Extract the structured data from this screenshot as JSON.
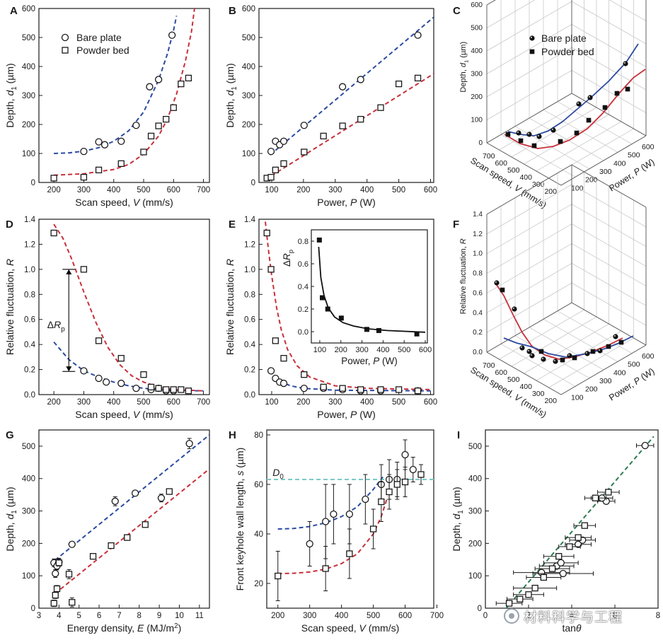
{
  "watermark": "材料科学与工程",
  "chart_data": [
    {
      "panel": "A",
      "type": "scatter",
      "xlabel": "Scan speed, V (mm/s)",
      "ylabel": "Depth, d1 (µm)",
      "xlim": [
        150,
        720
      ],
      "ylim": [
        0,
        600
      ],
      "xticks": [
        200,
        300,
        400,
        500,
        600,
        700
      ],
      "yticks": [
        0,
        100,
        200,
        300,
        400,
        500,
        600
      ],
      "legend": "top-left",
      "series": [
        {
          "name": "Bare plate",
          "marker": "circle",
          "x": [
            300,
            350,
            370,
            425,
            475,
            520,
            550,
            595
          ],
          "y": [
            107,
            140,
            130,
            142,
            197,
            330,
            355,
            508
          ]
        },
        {
          "name": "Powder bed",
          "marker": "square",
          "x": [
            200,
            300,
            350,
            425,
            500,
            525,
            550,
            575,
            600,
            625,
            650
          ],
          "y": [
            15,
            18,
            43,
            65,
            105,
            160,
            195,
            218,
            258,
            340,
            360
          ]
        }
      ],
      "fits": [
        {
          "color": "#2b4aa0",
          "x": [
            200,
            250,
            300,
            350,
            400,
            450,
            500,
            550,
            580,
            600,
            610
          ],
          "y": [
            100,
            102,
            108,
            120,
            142,
            178,
            243,
            353,
            445,
            525,
            575
          ]
        },
        {
          "color": "#c8303a",
          "x": [
            200,
            300,
            400,
            450,
            500,
            550,
            580,
            610,
            640,
            660,
            670
          ],
          "y": [
            25,
            30,
            45,
            62,
            98,
            160,
            220,
            305,
            420,
            520,
            600
          ]
        }
      ]
    },
    {
      "panel": "B",
      "type": "scatter",
      "xlabel": "Power, P (W)",
      "ylabel": "Depth, d1 (µm)",
      "xlim": [
        60,
        610
      ],
      "ylim": [
        0,
        600
      ],
      "xticks": [
        100,
        200,
        300,
        400,
        500,
        600
      ],
      "yticks": [
        0,
        100,
        200,
        300,
        400,
        500,
        600
      ],
      "series": [
        {
          "name": "Bare plate",
          "marker": "circle",
          "x": [
            98,
            112,
            125,
            138,
            202,
            323,
            380,
            560
          ],
          "y": [
            107,
            142,
            130,
            142,
            197,
            330,
            355,
            508
          ]
        },
        {
          "name": "Powder bed",
          "marker": "square",
          "x": [
            85,
            98,
            112,
            138,
            202,
            263,
            323,
            380,
            443,
            500,
            560
          ],
          "y": [
            15,
            18,
            43,
            65,
            105,
            160,
            195,
            218,
            258,
            340,
            360
          ]
        }
      ],
      "fits": [
        {
          "color": "#2b4aa0",
          "x": [
            95,
            610
          ],
          "y": [
            95,
            570
          ]
        },
        {
          "color": "#c8303a",
          "x": [
            80,
            610
          ],
          "y": [
            10,
            375
          ]
        }
      ]
    },
    {
      "panel": "C",
      "type": "scatter",
      "xlabel": "Scan speed, V (mm/s)",
      "ylabel": "Power, P (W)",
      "zlabel": "Depth, d1 (µm)",
      "xticks": [
        200,
        300,
        400,
        500,
        600,
        700
      ],
      "yticks": [
        100,
        200,
        300,
        400,
        500,
        600
      ],
      "zticks": [
        0,
        100,
        200,
        300,
        400,
        500,
        600
      ],
      "legend": "top",
      "series": [
        {
          "name": "Bare plate",
          "marker": "sphere"
        },
        {
          "name": "Powder bed",
          "marker": "filled-square"
        }
      ]
    },
    {
      "panel": "D",
      "type": "scatter",
      "xlabel": "Scan speed, V (mm/s)",
      "ylabel": "Relative fluctuation, R",
      "xlim": [
        150,
        720
      ],
      "ylim": [
        0,
        1.4
      ],
      "xticks": [
        200,
        300,
        400,
        500,
        600,
        700
      ],
      "yticks": [
        0,
        0.2,
        0.4,
        0.6,
        0.8,
        1.0,
        1.2,
        1.4
      ],
      "annotation": "ΔRp",
      "series": [
        {
          "name": "Bare plate",
          "marker": "circle",
          "x": [
            300,
            350,
            375,
            425,
            475,
            525,
            550,
            575,
            600
          ],
          "y": [
            0.19,
            0.13,
            0.1,
            0.09,
            0.05,
            0.04,
            0.05,
            0.03,
            0.03
          ]
        },
        {
          "name": "Powder bed",
          "marker": "square",
          "x": [
            200,
            300,
            350,
            425,
            500,
            525,
            550,
            575,
            600,
            625,
            650
          ],
          "y": [
            1.29,
            1.0,
            0.43,
            0.29,
            0.16,
            0.06,
            0.05,
            0.04,
            0.04,
            0.04,
            0.03
          ]
        }
      ],
      "fits": [
        {
          "color": "#2b4aa0",
          "x": [
            200,
            250,
            300,
            350,
            400,
            450,
            500,
            550,
            600,
            700
          ],
          "y": [
            0.42,
            0.28,
            0.19,
            0.14,
            0.1,
            0.07,
            0.05,
            0.04,
            0.035,
            0.03
          ]
        },
        {
          "color": "#c8303a",
          "x": [
            200,
            230,
            260,
            300,
            340,
            380,
            420,
            460,
            500,
            550,
            600,
            700
          ],
          "y": [
            1.36,
            1.25,
            1.08,
            0.82,
            0.58,
            0.38,
            0.24,
            0.15,
            0.1,
            0.06,
            0.04,
            0.03
          ]
        }
      ]
    },
    {
      "panel": "E",
      "type": "scatter",
      "xlabel": "Power, P (W)",
      "ylabel": "Relative fluctuation, R",
      "xlim": [
        60,
        610
      ],
      "ylim": [
        0,
        1.4
      ],
      "xticks": [
        100,
        200,
        300,
        400,
        500,
        600
      ],
      "yticks": [
        0,
        0.2,
        0.4,
        0.6,
        0.8,
        1.0,
        1.2,
        1.4
      ],
      "series": [
        {
          "name": "Bare plate",
          "marker": "circle",
          "x": [
            98,
            112,
            125,
            138,
            202,
            263,
            323,
            380,
            443,
            560
          ],
          "y": [
            0.19,
            0.13,
            0.1,
            0.09,
            0.05,
            0.05,
            0.04,
            0.03,
            0.03,
            0.03
          ]
        },
        {
          "name": "Powder bed",
          "marker": "square",
          "x": [
            85,
            98,
            112,
            138,
            202,
            263,
            323,
            380,
            443,
            500,
            560
          ],
          "y": [
            1.29,
            1.0,
            0.43,
            0.29,
            0.16,
            0.06,
            0.05,
            0.04,
            0.04,
            0.04,
            0.03
          ]
        }
      ],
      "fits": [
        {
          "color": "#2b4aa0",
          "x": [
            95,
            110,
            130,
            160,
            200,
            300,
            600
          ],
          "y": [
            0.19,
            0.13,
            0.1,
            0.07,
            0.05,
            0.035,
            0.03
          ]
        },
        {
          "color": "#c8303a",
          "x": [
            80,
            90,
            100,
            115,
            130,
            150,
            180,
            220,
            300,
            400,
            600
          ],
          "y": [
            1.38,
            1.15,
            0.95,
            0.7,
            0.52,
            0.36,
            0.23,
            0.14,
            0.07,
            0.05,
            0.04
          ]
        }
      ],
      "inset": {
        "xlabel": "Power, P (W)",
        "ylabel": "ΔRp",
        "xlim": [
          60,
          610
        ],
        "ylim": [
          -0.1,
          0.9
        ],
        "xticks": [
          100,
          200,
          300,
          400,
          500,
          600
        ],
        "yticks": [
          0.0,
          0.2,
          0.4,
          0.6,
          0.8
        ],
        "x": [
          98,
          112,
          138,
          202,
          323,
          380,
          560
        ],
        "y": [
          0.81,
          0.3,
          0.2,
          0.12,
          0.02,
          0.01,
          -0.02
        ],
        "fit": {
          "x": [
            95,
            105,
            120,
            140,
            170,
            210,
            260,
            330,
            420,
            600
          ],
          "y": [
            0.75,
            0.48,
            0.32,
            0.21,
            0.13,
            0.08,
            0.05,
            0.025,
            0.01,
            -0.005
          ]
        }
      }
    },
    {
      "panel": "F",
      "type": "scatter",
      "xlabel": "Scan speed, V (mm/s)",
      "ylabel": "Power, P (W)",
      "zlabel": "Relative fluctuation, R",
      "xticks": [
        200,
        300,
        400,
        500,
        600,
        700
      ],
      "yticks": [
        100,
        200,
        300,
        400,
        500,
        600
      ],
      "zticks": [
        0,
        0.2,
        0.4,
        0.6,
        0.8,
        1.0,
        1.2,
        1.4
      ]
    },
    {
      "panel": "G",
      "type": "scatter",
      "xlabel": "Energy density, E (MJ/m2)",
      "ylabel": "Depth, d1 (µm)",
      "xlim": [
        3,
        11.5
      ],
      "ylim": [
        0,
        550
      ],
      "xticks": [
        3,
        4,
        5,
        6,
        7,
        8,
        9,
        10,
        11
      ],
      "yticks": [
        0,
        100,
        200,
        300,
        400,
        500
      ],
      "series": [
        {
          "name": "Bare plate",
          "marker": "circle",
          "x": [
            3.75,
            3.82,
            3.9,
            4.0,
            4.65,
            6.8,
            7.8,
            9.1,
            10.5
          ],
          "y": [
            140,
            107,
            130,
            142,
            197,
            330,
            355,
            340,
            508
          ],
          "err": [
            12,
            12,
            12,
            12,
            8,
            14,
            8,
            12,
            16
          ]
        },
        {
          "name": "Powder bed",
          "marker": "square",
          "x": [
            3.75,
            3.82,
            3.9,
            4.0,
            4.5,
            4.65,
            5.7,
            6.6,
            7.4,
            8.3,
            9.5
          ],
          "y": [
            15,
            40,
            60,
            140,
            105,
            18,
            160,
            193,
            218,
            258,
            360
          ],
          "err": [
            10,
            10,
            10,
            10,
            14,
            14,
            8,
            8,
            8,
            8,
            8
          ]
        }
      ],
      "fits": [
        {
          "color": "#2b4aa0",
          "x": [
            3.8,
            11.5
          ],
          "y": [
            148,
            535
          ]
        },
        {
          "color": "#c8303a",
          "x": [
            3.8,
            11.5
          ],
          "y": [
            45,
            430
          ]
        }
      ]
    },
    {
      "panel": "H",
      "type": "scatter",
      "xlabel": "Scan speed, V (mm/s)",
      "ylabel": "Front keyhole wall length, s (µm)",
      "xlim": [
        165,
        690
      ],
      "ylim": [
        10,
        82
      ],
      "xticks": [
        200,
        300,
        400,
        500,
        600,
        700
      ],
      "yticks": [
        20,
        40,
        60,
        80
      ],
      "annotation": "D0",
      "reference_line": 62,
      "series": [
        {
          "name": "Bare plate",
          "marker": "circle",
          "x": [
            300,
            350,
            375,
            425,
            475,
            525,
            550,
            575,
            600,
            625
          ],
          "y": [
            36,
            45,
            48,
            48,
            54,
            60,
            62,
            62,
            72,
            66
          ],
          "err": [
            9,
            15,
            12,
            12,
            10,
            8,
            8,
            7,
            6,
            5
          ]
        },
        {
          "name": "Powder bed",
          "marker": "square",
          "x": [
            200,
            350,
            425,
            500,
            525,
            550,
            575,
            600,
            650
          ],
          "y": [
            23,
            26,
            32,
            42,
            53,
            57,
            60,
            61,
            64
          ],
          "err": [
            10,
            9,
            10,
            8,
            8,
            7,
            6,
            6,
            4
          ]
        }
      ],
      "fits": [
        {
          "color": "#2b4aa0",
          "x": [
            200,
            250,
            300,
            350,
            400,
            450,
            500,
            530
          ],
          "y": [
            42,
            42.2,
            43,
            44.5,
            47,
            51,
            58,
            63
          ]
        },
        {
          "color": "#c8303a",
          "x": [
            200,
            250,
            300,
            350,
            400,
            450,
            500,
            525,
            545
          ],
          "y": [
            24,
            24.1,
            24.6,
            25.8,
            28,
            32,
            40,
            47,
            55
          ]
        },
        {
          "color": "#7ec8c8",
          "x": [
            165,
            690
          ],
          "y": [
            62,
            62
          ]
        }
      ]
    },
    {
      "panel": "I",
      "type": "scatter",
      "xlabel": "tanθ",
      "ylabel": "Depth, d1 (µm)",
      "xlim": [
        0,
        8
      ],
      "ylim": [
        0,
        550
      ],
      "xticks": [
        0,
        2,
        4,
        6,
        8
      ],
      "yticks": [
        0,
        100,
        200,
        300,
        400,
        500
      ],
      "series": [
        {
          "name": "Bare plate",
          "marker": "circle",
          "x": [
            2.6,
            3.3,
            3.5,
            3.6,
            4.3,
            4.5,
            5.6,
            5.4,
            7.4
          ],
          "y": [
            110,
            130,
            140,
            107,
            197,
            210,
            330,
            340,
            502
          ],
          "xerr": [
            1.3,
            0.8,
            0.8,
            1.4,
            0.6,
            0.6,
            0.4,
            0.5,
            0.4
          ]
        },
        {
          "name": "Powder bed",
          "marker": "square",
          "x": [
            1.1,
            1.6,
            2.0,
            2.3,
            2.7,
            3.1,
            3.4,
            3.9,
            4.3,
            4.6,
            5.1,
            5.7
          ],
          "y": [
            15,
            28,
            42,
            62,
            95,
            122,
            160,
            190,
            218,
            255,
            340,
            358
          ],
          "xerr": [
            0.6,
            0.6,
            0.7,
            1.0,
            0.8,
            0.8,
            0.7,
            0.5,
            0.6,
            0.5,
            0.5,
            0.5
          ]
        }
      ],
      "fits": [
        {
          "color": "#2c7a50",
          "x": [
            0.7,
            7.8
          ],
          "y": [
            -20,
            530
          ]
        }
      ]
    }
  ]
}
